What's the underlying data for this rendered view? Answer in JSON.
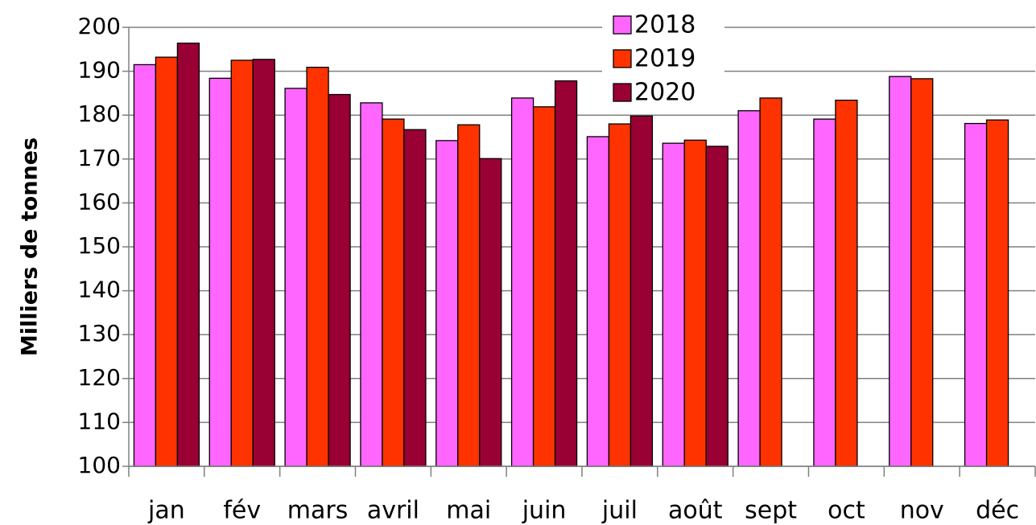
{
  "chart_data": {
    "type": "bar",
    "ylabel": "Milliers de tonnes",
    "categories": [
      "jan",
      "fév",
      "mars",
      "avril",
      "mai",
      "juin",
      "juil",
      "août",
      "sept",
      "oct",
      "nov",
      "déc"
    ],
    "series": [
      {
        "name": "2018",
        "color": "#ff66ff",
        "values": [
          191.5,
          188.4,
          186.1,
          182.8,
          174.2,
          183.9,
          175.1,
          173.6,
          181.0,
          179.1,
          188.8,
          178.1
        ]
      },
      {
        "name": "2019",
        "color": "#ff3300",
        "values": [
          193.2,
          192.5,
          190.9,
          179.1,
          177.8,
          181.9,
          178.0,
          174.3,
          183.9,
          183.4,
          188.3,
          178.9
        ]
      },
      {
        "name": "2020",
        "color": "#990033",
        "values": [
          196.4,
          192.7,
          184.7,
          176.7,
          170.1,
          187.8,
          179.8,
          172.9,
          null,
          null,
          null,
          null
        ]
      }
    ],
    "ylim": [
      100,
      200
    ],
    "yticks": [
      100,
      110,
      120,
      130,
      140,
      150,
      160,
      170,
      180,
      190,
      200
    ],
    "grid": true,
    "legend": "top"
  }
}
